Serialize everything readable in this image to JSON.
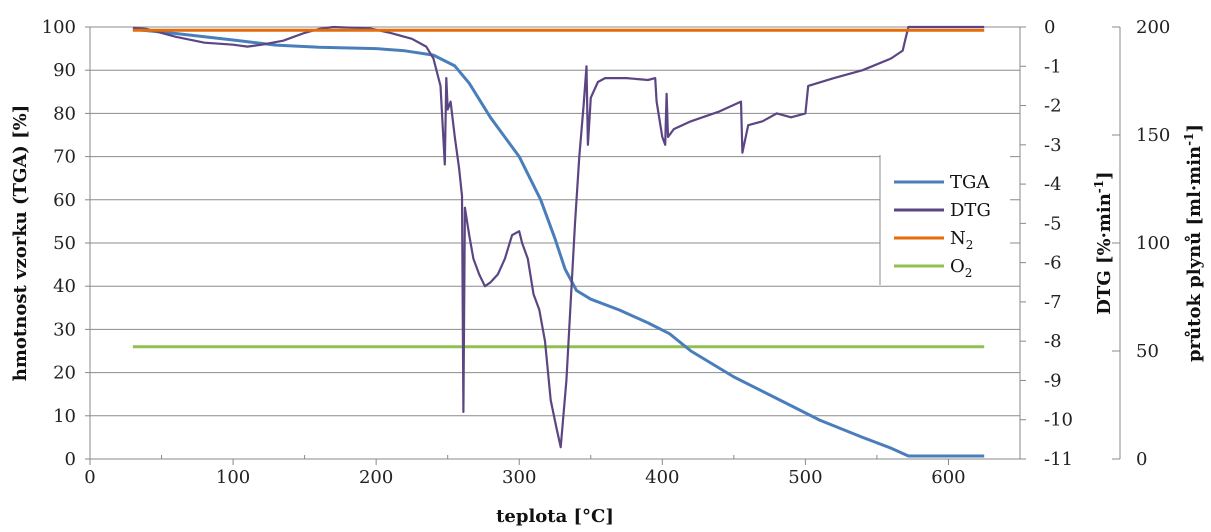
{
  "chart_data": {
    "type": "line",
    "xlabel": "teplota [°C]",
    "ylabel_left": "hmotnost vzorku (TGA) [%]",
    "ylabel_right1": "DTG [%·min",
    "ylabel_right1_sup": "-1",
    "ylabel_right1_end": "]",
    "ylabel_right2": "průtok plynů [ml·min",
    "ylabel_right2_sup": "-1",
    "ylabel_right2_end": "]",
    "xlim": [
      0,
      650
    ],
    "ylim_left": [
      0,
      100
    ],
    "ylim_dtg": [
      -11,
      0
    ],
    "ylim_flow": [
      0,
      200
    ],
    "x_ticks": [
      "0",
      "100",
      "200",
      "300",
      "400",
      "500",
      "600"
    ],
    "y_left_ticks": [
      "0",
      "10",
      "20",
      "30",
      "40",
      "50",
      "60",
      "70",
      "80",
      "90",
      "100"
    ],
    "y_dtg_ticks": [
      "0",
      "-1",
      "-2",
      "-3",
      "-4",
      "-5",
      "-6",
      "-7",
      "-8",
      "-9",
      "-10",
      "-11"
    ],
    "y_flow_ticks": [
      "0",
      "50",
      "100",
      "150",
      "200"
    ],
    "grid": true,
    "legend_position": "right, inside plot",
    "legend": [
      {
        "label": "TGA",
        "sub": "",
        "color": "#4a7ebb"
      },
      {
        "label": "DTG",
        "sub": "",
        "color": "#5b4683"
      },
      {
        "label": "N",
        "sub": "2",
        "color": "#e46c0a"
      },
      {
        "label": "O",
        "sub": "2",
        "color": "#92c050"
      }
    ],
    "series": [
      {
        "name": "TGA",
        "axis": "left",
        "color": "#4a7ebb",
        "points": [
          [
            30,
            99.5
          ],
          [
            60,
            98.5
          ],
          [
            100,
            97
          ],
          [
            130,
            95.8
          ],
          [
            160,
            95.3
          ],
          [
            200,
            95
          ],
          [
            220,
            94.5
          ],
          [
            240,
            93.5
          ],
          [
            255,
            91
          ],
          [
            265,
            87
          ],
          [
            280,
            79
          ],
          [
            300,
            70
          ],
          [
            315,
            60
          ],
          [
            325,
            51
          ],
          [
            332,
            44
          ],
          [
            340,
            39
          ],
          [
            350,
            37
          ],
          [
            370,
            34.5
          ],
          [
            390,
            31.5
          ],
          [
            405,
            29
          ],
          [
            420,
            25
          ],
          [
            450,
            19
          ],
          [
            480,
            14
          ],
          [
            510,
            9
          ],
          [
            540,
            5
          ],
          [
            560,
            2.5
          ],
          [
            572,
            0.7
          ],
          [
            625,
            0.7
          ]
        ]
      },
      {
        "name": "DTG",
        "axis": "dtg",
        "color": "#5b4683",
        "points": [
          [
            30,
            -0.02
          ],
          [
            40,
            -0.05
          ],
          [
            50,
            -0.15
          ],
          [
            60,
            -0.25
          ],
          [
            80,
            -0.4
          ],
          [
            100,
            -0.45
          ],
          [
            110,
            -0.5
          ],
          [
            120,
            -0.45
          ],
          [
            135,
            -0.35
          ],
          [
            150,
            -0.15
          ],
          [
            160,
            -0.05
          ],
          [
            170,
            0
          ],
          [
            185,
            -0.02
          ],
          [
            195,
            -0.03
          ],
          [
            210,
            -0.15
          ],
          [
            225,
            -0.3
          ],
          [
            235,
            -0.5
          ],
          [
            240,
            -0.8
          ],
          [
            245,
            -1.5
          ],
          [
            248,
            -3.5
          ],
          [
            249,
            -1.3
          ],
          [
            250,
            -2.1
          ],
          [
            252,
            -1.9
          ],
          [
            255,
            -2.8
          ],
          [
            258,
            -3.6
          ],
          [
            260,
            -4.3
          ],
          [
            261,
            -9.8
          ],
          [
            262,
            -4.6
          ],
          [
            265,
            -5.3
          ],
          [
            268,
            -5.9
          ],
          [
            272,
            -6.3
          ],
          [
            276,
            -6.6
          ],
          [
            280,
            -6.5
          ],
          [
            285,
            -6.3
          ],
          [
            290,
            -5.9
          ],
          [
            295,
            -5.3
          ],
          [
            300,
            -5.2
          ],
          [
            302,
            -5.5
          ],
          [
            306,
            -5.9
          ],
          [
            310,
            -6.8
          ],
          [
            314,
            -7.2
          ],
          [
            318,
            -8
          ],
          [
            322,
            -9.5
          ],
          [
            326,
            -10.2
          ],
          [
            329,
            -10.7
          ],
          [
            333,
            -9
          ],
          [
            336,
            -7
          ],
          [
            339,
            -5
          ],
          [
            342,
            -3.3
          ],
          [
            345,
            -2
          ],
          [
            347,
            -1
          ],
          [
            348,
            -3
          ],
          [
            350,
            -1.8
          ],
          [
            355,
            -1.4
          ],
          [
            360,
            -1.3
          ],
          [
            375,
            -1.3
          ],
          [
            390,
            -1.35
          ],
          [
            395,
            -1.3
          ],
          [
            396,
            -1.9
          ],
          [
            400,
            -2.8
          ],
          [
            402,
            -3
          ],
          [
            403,
            -1.7
          ],
          [
            404,
            -2.8
          ],
          [
            408,
            -2.6
          ],
          [
            420,
            -2.4
          ],
          [
            440,
            -2.15
          ],
          [
            455,
            -1.9
          ],
          [
            456,
            -3.2
          ],
          [
            460,
            -2.5
          ],
          [
            470,
            -2.4
          ],
          [
            480,
            -2.2
          ],
          [
            490,
            -2.3
          ],
          [
            500,
            -2.2
          ],
          [
            502,
            -1.5
          ],
          [
            520,
            -1.3
          ],
          [
            540,
            -1.1
          ],
          [
            560,
            -0.8
          ],
          [
            568,
            -0.6
          ],
          [
            570,
            -0.3
          ],
          [
            572,
            0
          ],
          [
            625,
            0
          ]
        ]
      },
      {
        "name": "N2",
        "axis": "flow",
        "color": "#e46c0a",
        "points": [
          [
            30,
            198.5
          ],
          [
            625,
            198.5
          ]
        ]
      },
      {
        "name": "O2",
        "axis": "flow",
        "color": "#92c050",
        "points": [
          [
            30,
            52
          ],
          [
            625,
            52
          ]
        ]
      }
    ]
  }
}
